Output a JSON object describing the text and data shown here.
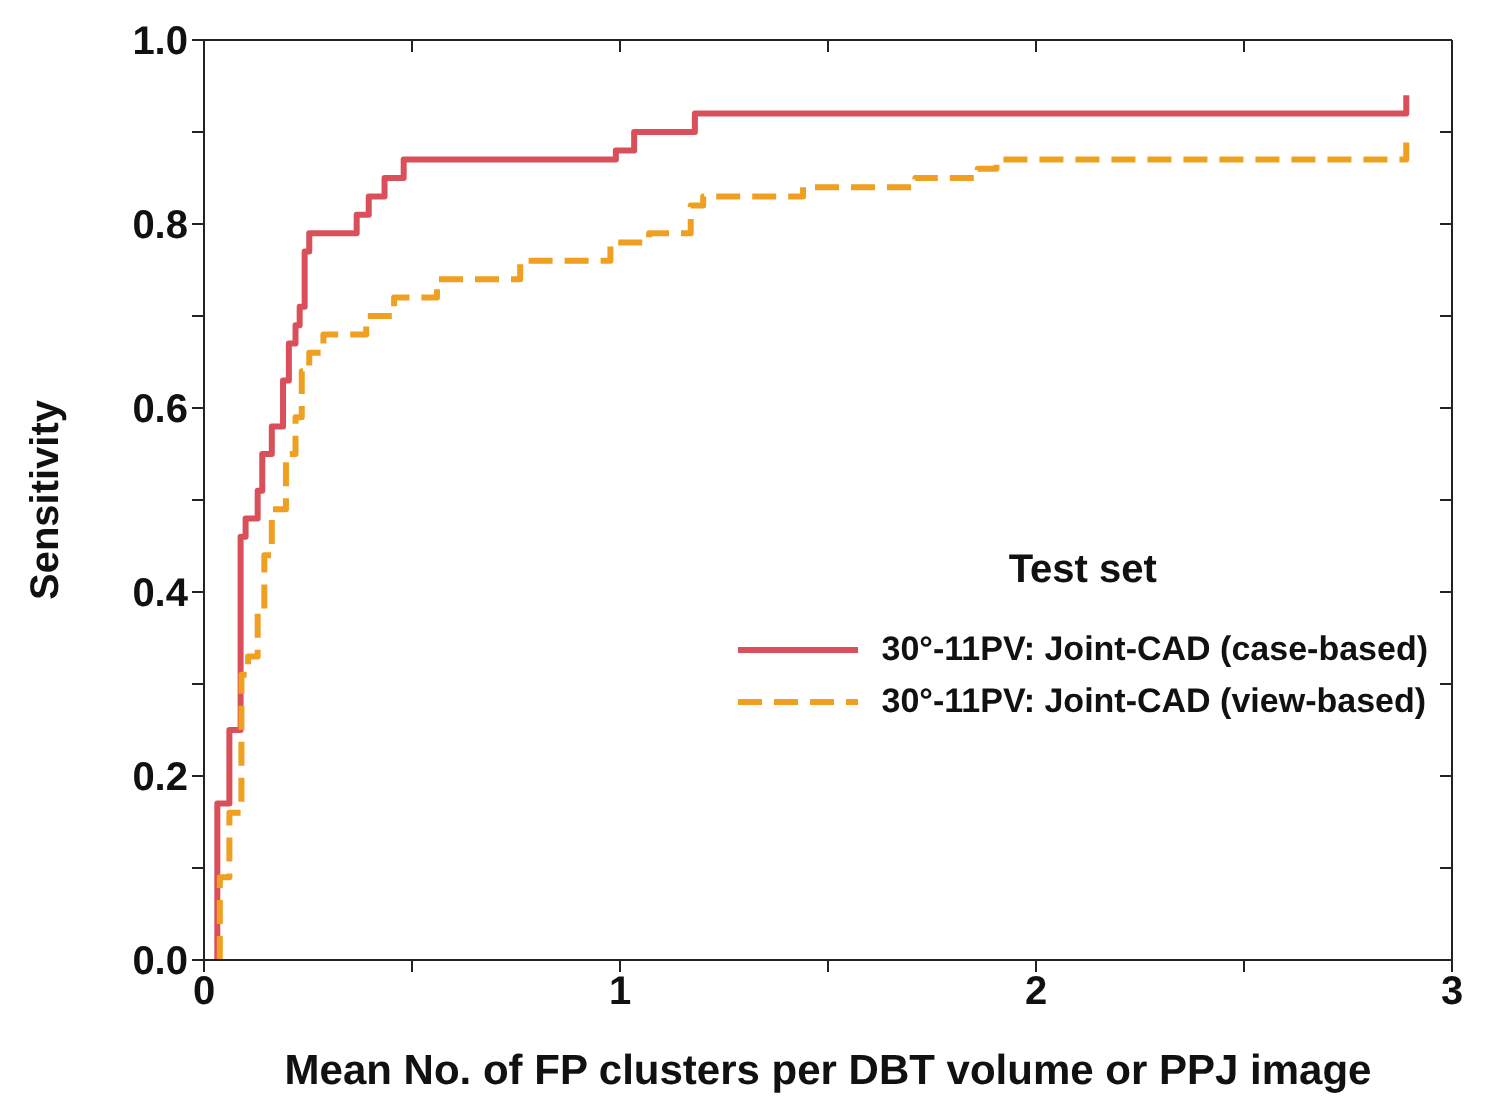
{
  "chart_data": {
    "type": "step",
    "xlabel": "Mean No. of FP clusters per DBT volume or PPJ image",
    "ylabel": "Sensitivity",
    "legend_title": "Test set",
    "legend": "right",
    "marker": "none",
    "xlim": [
      0,
      3
    ],
    "xticks": [
      0,
      {
        "value": 0.5,
        "label": null
      },
      1,
      {
        "value": 1.5,
        "label": null
      },
      2,
      {
        "value": 2.5,
        "label": null
      },
      3
    ],
    "ylim": [
      0,
      1
    ],
    "yticks": [
      "0.0",
      {
        "value": 0.1,
        "label": null
      },
      0.2,
      {
        "value": 0.3,
        "label": null
      },
      0.4,
      {
        "value": 0.5,
        "label": null
      },
      0.6,
      {
        "value": 0.7,
        "label": null
      },
      0.8,
      {
        "value": 0.9,
        "label": null
      },
      "1.0"
    ],
    "series": [
      {
        "name": "30°-11PV: Joint-CAD (case-based)",
        "color": "#d9505a",
        "line_style": "solid",
        "x": [
          0.032,
          0.032,
          0.061,
          0.088,
          0.1,
          0.129,
          0.14,
          0.163,
          0.19,
          0.204,
          0.22,
          0.23,
          0.242,
          0.253,
          0.367,
          0.396,
          0.434,
          0.48,
          0.99,
          1.034,
          1.18,
          2.89,
          2.89
        ],
        "values": [
          0,
          0.17,
          0.25,
          0.46,
          0.48,
          0.51,
          0.55,
          0.58,
          0.63,
          0.67,
          0.69,
          0.71,
          0.77,
          0.79,
          0.81,
          0.83,
          0.85,
          0.87,
          0.88,
          0.9,
          0.92,
          0.92,
          0.94
        ]
      },
      {
        "name": "30°-11PV: Joint-CAD (view-based)",
        "color": "#f0a020",
        "line_style": "dashed",
        "x": [
          0.038,
          0.038,
          0.061,
          0.09,
          0.106,
          0.129,
          0.145,
          0.163,
          0.197,
          0.22,
          0.235,
          0.253,
          0.287,
          0.39,
          0.457,
          0.56,
          0.76,
          0.977,
          1.07,
          1.17,
          1.2,
          1.44,
          1.71,
          1.86,
          1.905,
          2.89,
          2.89
        ],
        "values": [
          0,
          0.09,
          0.16,
          0.31,
          0.33,
          0.38,
          0.44,
          0.49,
          0.55,
          0.59,
          0.64,
          0.66,
          0.68,
          0.7,
          0.72,
          0.74,
          0.76,
          0.78,
          0.79,
          0.82,
          0.83,
          0.84,
          0.85,
          0.86,
          0.87,
          0.87,
          0.89
        ]
      }
    ]
  }
}
